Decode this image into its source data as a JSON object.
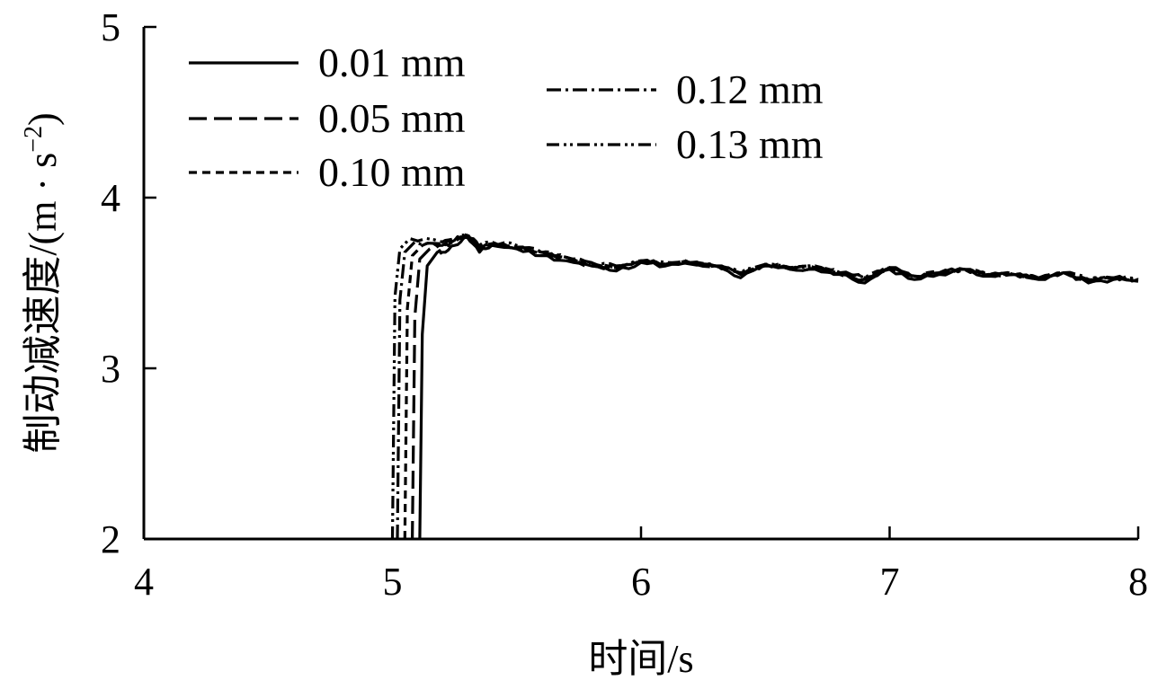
{
  "chart_data": {
    "type": "line",
    "xlabel": "时间/s",
    "ylabel": "制动减速度/(m · s",
    "ylabel_sup": "−2",
    "ylabel_end": ")",
    "xlim": [
      4,
      8
    ],
    "ylim": [
      2,
      5
    ],
    "xticks": [
      "4",
      "5",
      "6",
      "7",
      "8"
    ],
    "yticks": [
      "2",
      "3",
      "4",
      "5"
    ],
    "legend_position": "top-left, two columns",
    "series": [
      {
        "name": "0.01 mm",
        "dash": "none",
        "rise_start": 5.11,
        "plateau_start": 5.18,
        "offset": 0.0,
        "x": [
          5.11,
          5.12,
          5.14,
          5.18,
          5.2,
          5.25,
          5.3,
          5.35,
          5.4,
          5.5,
          5.6,
          5.7,
          5.8,
          5.9,
          6.0,
          6.1,
          6.2,
          6.3,
          6.4,
          6.5,
          6.6,
          6.7,
          6.8,
          6.9,
          7.0,
          7.1,
          7.2,
          7.3,
          7.4,
          7.5,
          7.6,
          7.7,
          7.8,
          7.9,
          8.0
        ],
        "y": [
          2.0,
          3.2,
          3.6,
          3.68,
          3.68,
          3.72,
          3.77,
          3.68,
          3.72,
          3.7,
          3.66,
          3.63,
          3.6,
          3.57,
          3.62,
          3.6,
          3.61,
          3.6,
          3.53,
          3.6,
          3.58,
          3.58,
          3.55,
          3.5,
          3.58,
          3.52,
          3.55,
          3.58,
          3.54,
          3.55,
          3.52,
          3.56,
          3.5,
          3.52,
          3.51
        ]
      },
      {
        "name": "0.05 mm",
        "dash": "20 8",
        "rise_start": 5.08,
        "plateau_start": 5.15,
        "offset": 0.01,
        "x": [
          5.08,
          5.09,
          5.11,
          5.15,
          5.2,
          5.25,
          5.3,
          5.35,
          5.4,
          5.5,
          5.6,
          5.7,
          5.8,
          5.9,
          6.0,
          6.1,
          6.2,
          6.3,
          6.4,
          6.5,
          6.6,
          6.7,
          6.8,
          6.9,
          7.0,
          7.1,
          7.2,
          7.3,
          7.4,
          7.5,
          7.6,
          7.7,
          7.8,
          7.9,
          8.0
        ],
        "y": [
          2.0,
          3.3,
          3.64,
          3.7,
          3.72,
          3.74,
          3.78,
          3.7,
          3.73,
          3.71,
          3.67,
          3.64,
          3.6,
          3.58,
          3.63,
          3.61,
          3.62,
          3.6,
          3.55,
          3.61,
          3.58,
          3.59,
          3.55,
          3.52,
          3.59,
          3.53,
          3.56,
          3.58,
          3.55,
          3.55,
          3.53,
          3.56,
          3.51,
          3.53,
          3.52
        ]
      },
      {
        "name": "0.10 mm",
        "dash": "9 6",
        "rise_start": 5.05,
        "plateau_start": 5.12,
        "offset": 0.02,
        "x": [
          5.05,
          5.06,
          5.08,
          5.12,
          5.2,
          5.25,
          5.3,
          5.35,
          5.4,
          5.5,
          5.6,
          5.7,
          5.8,
          5.9,
          6.0,
          6.1,
          6.2,
          6.3,
          6.4,
          6.5,
          6.6,
          6.7,
          6.8,
          6.9,
          7.0,
          7.1,
          7.2,
          7.3,
          7.4,
          7.5,
          7.6,
          7.7,
          7.8,
          7.9,
          8.0
        ],
        "y": [
          2.0,
          3.35,
          3.66,
          3.72,
          3.73,
          3.75,
          3.78,
          3.71,
          3.73,
          3.71,
          3.68,
          3.65,
          3.61,
          3.59,
          3.63,
          3.61,
          3.62,
          3.6,
          3.56,
          3.61,
          3.59,
          3.59,
          3.56,
          3.53,
          3.59,
          3.54,
          3.56,
          3.58,
          3.55,
          3.55,
          3.53,
          3.56,
          3.52,
          3.53,
          3.52
        ]
      },
      {
        "name": "0.12 mm",
        "dash": "16 5 3 5",
        "rise_start": 5.02,
        "plateau_start": 5.09,
        "offset": 0.02,
        "x": [
          5.02,
          5.03,
          5.05,
          5.09,
          5.2,
          5.25,
          5.3,
          5.35,
          5.4,
          5.5,
          5.6,
          5.7,
          5.8,
          5.9,
          6.0,
          6.1,
          6.2,
          6.3,
          6.4,
          6.5,
          6.6,
          6.7,
          6.8,
          6.9,
          7.0,
          7.1,
          7.2,
          7.3,
          7.4,
          7.5,
          7.6,
          7.7,
          7.8,
          7.9,
          8.0
        ],
        "y": [
          2.0,
          3.4,
          3.68,
          3.74,
          3.73,
          3.75,
          3.79,
          3.71,
          3.73,
          3.71,
          3.68,
          3.65,
          3.62,
          3.59,
          3.63,
          3.61,
          3.62,
          3.6,
          3.56,
          3.61,
          3.59,
          3.6,
          3.56,
          3.53,
          3.59,
          3.54,
          3.56,
          3.58,
          3.55,
          3.55,
          3.53,
          3.56,
          3.52,
          3.53,
          3.52
        ]
      },
      {
        "name": "0.13 mm",
        "dash": "14 5 3 4 3 5",
        "rise_start": 5.0,
        "plateau_start": 5.07,
        "offset": 0.03,
        "x": [
          5.0,
          5.01,
          5.03,
          5.07,
          5.2,
          5.25,
          5.3,
          5.35,
          5.4,
          5.5,
          5.6,
          5.7,
          5.8,
          5.9,
          6.0,
          6.1,
          6.2,
          6.3,
          6.4,
          6.5,
          6.6,
          6.7,
          6.8,
          6.9,
          7.0,
          7.1,
          7.2,
          7.3,
          7.4,
          7.5,
          7.6,
          7.7,
          7.8,
          7.9,
          8.0
        ],
        "y": [
          2.0,
          3.42,
          3.7,
          3.76,
          3.74,
          3.76,
          3.79,
          3.72,
          3.74,
          3.72,
          3.68,
          3.65,
          3.62,
          3.6,
          3.63,
          3.62,
          3.62,
          3.6,
          3.56,
          3.61,
          3.59,
          3.6,
          3.56,
          3.53,
          3.59,
          3.54,
          3.56,
          3.58,
          3.55,
          3.55,
          3.53,
          3.56,
          3.52,
          3.53,
          3.52
        ]
      }
    ]
  }
}
